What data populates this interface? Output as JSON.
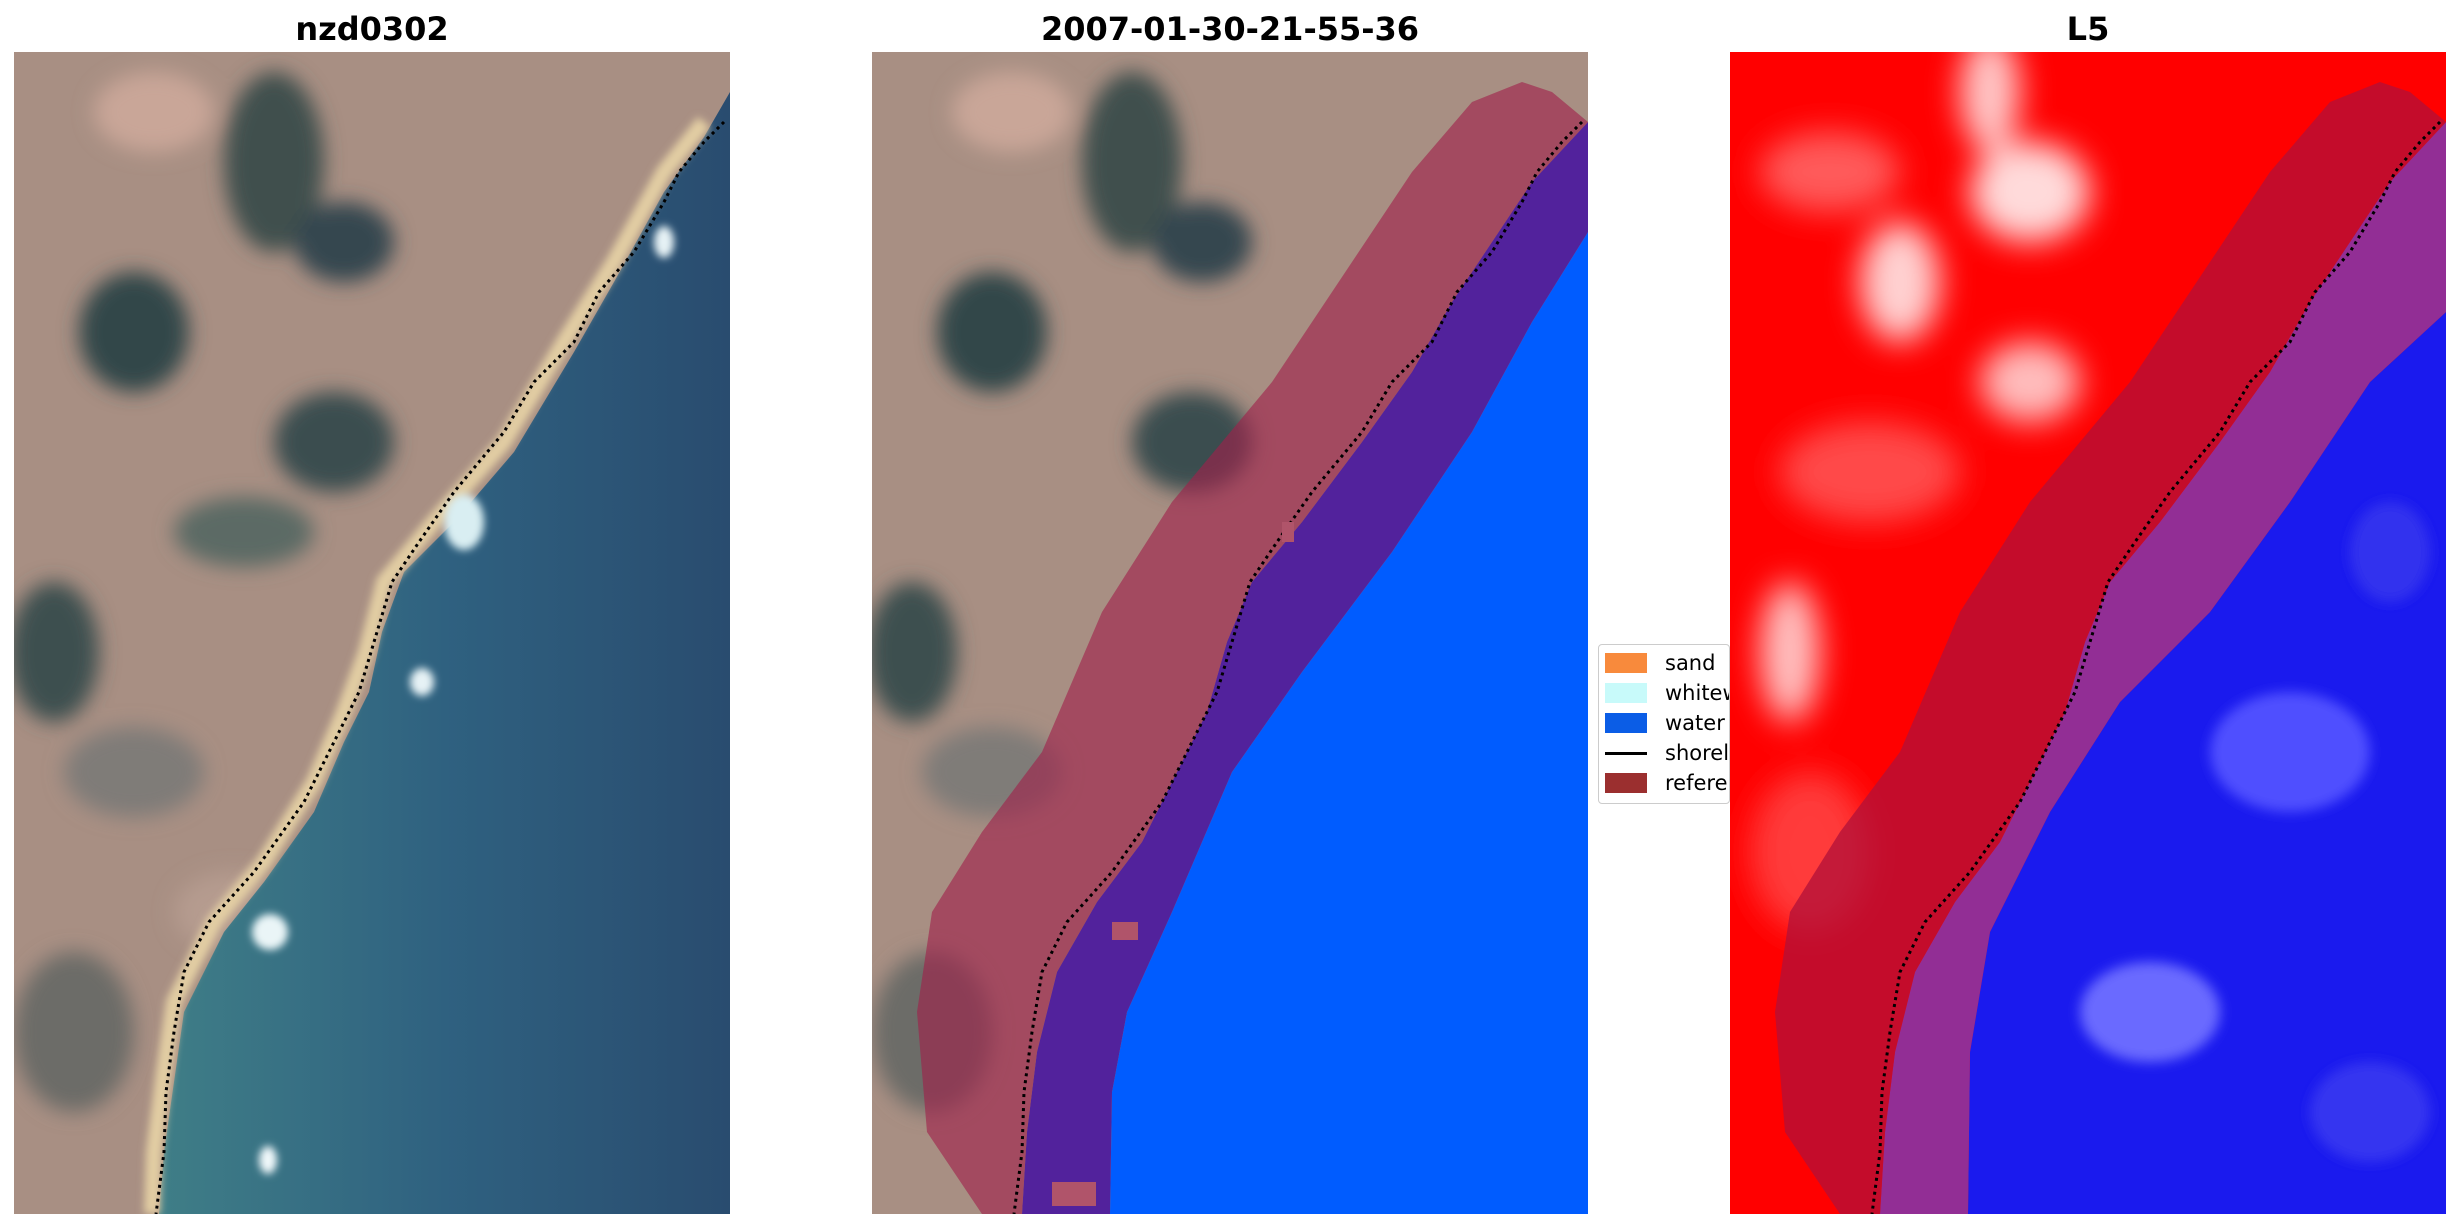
{
  "panels": [
    {
      "title": "nzd0302"
    },
    {
      "title": "2007-01-30-21-55-36"
    },
    {
      "title": "L5"
    }
  ],
  "legend": {
    "items": [
      {
        "label": "sand",
        "color": "#f88a3c",
        "kind": "patch"
      },
      {
        "label": "whitewater",
        "color": "#c8fafa",
        "kind": "patch"
      },
      {
        "label": "water",
        "color": "#0b5de6",
        "kind": "patch"
      },
      {
        "label": "shoreline",
        "color": "#000000",
        "kind": "line"
      },
      {
        "label": "reference",
        "color": "#9b2f2f",
        "kind": "patch"
      }
    ]
  },
  "colors": {
    "water_class": "#005cff",
    "buffer_overlay": "#a0204a",
    "land_index": "#ff0000",
    "water_index": "#1a1aee"
  }
}
